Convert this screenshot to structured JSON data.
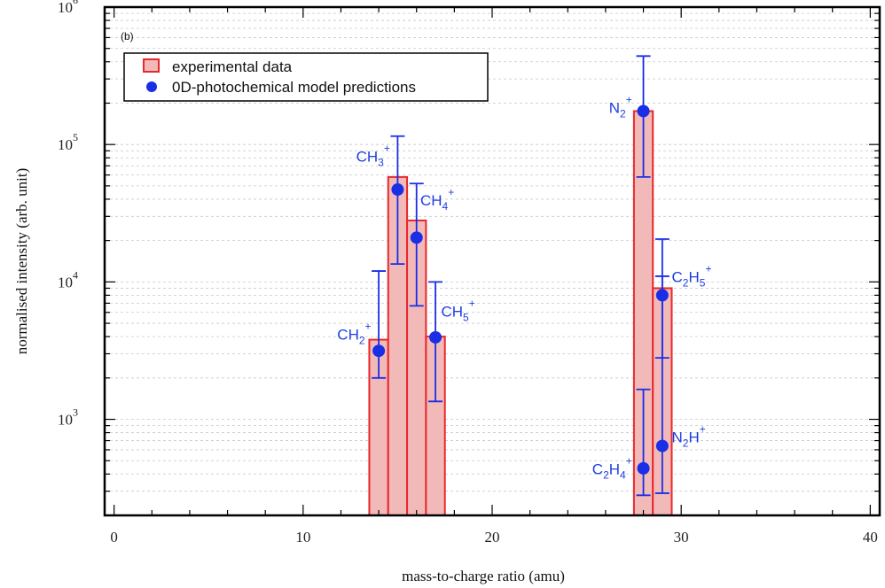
{
  "chart_data": {
    "type": "bar",
    "panel_label": "(b)",
    "xlabel": "mass-to-charge ratio (amu)",
    "ylabel": "normalised intensity (arb. unit)",
    "xlim": [
      -0.5,
      40.5
    ],
    "ylim": [
      200,
      1000000
    ],
    "yscale": "log",
    "grid": "horizontal minor+major dashed",
    "legend_position": "top-left",
    "x_ticks": [
      {
        "value": 0,
        "label": "0"
      },
      {
        "value": 10,
        "label": "10"
      },
      {
        "value": 20,
        "label": "20"
      },
      {
        "value": 30,
        "label": "30"
      },
      {
        "value": 40,
        "label": "40"
      }
    ],
    "y_ticks": [
      {
        "value": 1000,
        "base": "10",
        "exp": "3"
      },
      {
        "value": 10000,
        "base": "10",
        "exp": "4"
      },
      {
        "value": 100000,
        "base": "10",
        "exp": "5"
      },
      {
        "value": 1000000,
        "base": "10",
        "exp": "6"
      }
    ],
    "legend": [
      {
        "label": "experimental data",
        "kind": "bar"
      },
      {
        "label": "0D-photochemical model predictions",
        "kind": "point"
      }
    ],
    "series": [
      {
        "name": "experimental data",
        "type": "bar",
        "color": "#e8282b",
        "fill": "#f2b9b9",
        "points": [
          {
            "x": 14,
            "y": 3800
          },
          {
            "x": 15,
            "y": 58000
          },
          {
            "x": 16,
            "y": 28000
          },
          {
            "x": 17,
            "y": 4000
          },
          {
            "x": 28,
            "y": 175000
          },
          {
            "x": 29,
            "y": 9000
          }
        ]
      },
      {
        "name": "0D-photochemical model predictions",
        "type": "scatter",
        "color": "#1a2ee6",
        "points": [
          {
            "x": 14,
            "y": 3150,
            "ylow": 2000,
            "yhigh": 12000
          },
          {
            "x": 15,
            "y": 47000,
            "ylow": 13500,
            "yhigh": 115000
          },
          {
            "x": 16,
            "y": 21000,
            "ylow": 6700,
            "yhigh": 52000
          },
          {
            "x": 17,
            "y": 3950,
            "ylow": 1350,
            "yhigh": 10000
          },
          {
            "x": 28,
            "y": 175000,
            "ylow": 58000,
            "yhigh": 440000
          },
          {
            "x": 28,
            "y": 440,
            "ylow": 280,
            "yhigh": 1650
          },
          {
            "x": 29,
            "y": 8000,
            "ylow": 2800,
            "yhigh": 20500
          },
          {
            "x": 29,
            "y": 640,
            "ylow": 290,
            "yhigh": 11000
          }
        ]
      }
    ],
    "annotations": [
      {
        "x": 13.6,
        "y": 3800,
        "base": "CH",
        "sub": "2",
        "sup": "+",
        "anchor": "end"
      },
      {
        "x": 14.6,
        "y": 75000,
        "base": "CH",
        "sub": "3",
        "sup": "+",
        "anchor": "end"
      },
      {
        "x": 16.2,
        "y": 36000,
        "base": "CH",
        "sub": "4",
        "sup": "+",
        "anchor": "start"
      },
      {
        "x": 17.3,
        "y": 5600,
        "base": "CH",
        "sub": "5",
        "sup": "+",
        "anchor": "start"
      },
      {
        "x": 27.4,
        "y": 170000,
        "base": "N",
        "sub": "2",
        "sup": "+",
        "anchor": "end"
      },
      {
        "x": 29.5,
        "y": 10000,
        "base": "C",
        "sub": "2",
        "mid": "H",
        "sub2": "5",
        "sup": "+",
        "anchor": "start"
      },
      {
        "x": 27.4,
        "y": 400,
        "base": "C",
        "sub": "2",
        "mid": "H",
        "sub2": "4",
        "sup": "+",
        "anchor": "end"
      },
      {
        "x": 29.5,
        "y": 680,
        "base": "N",
        "sub": "2",
        "mid": "H",
        "sup": "+",
        "anchor": "start"
      }
    ]
  }
}
